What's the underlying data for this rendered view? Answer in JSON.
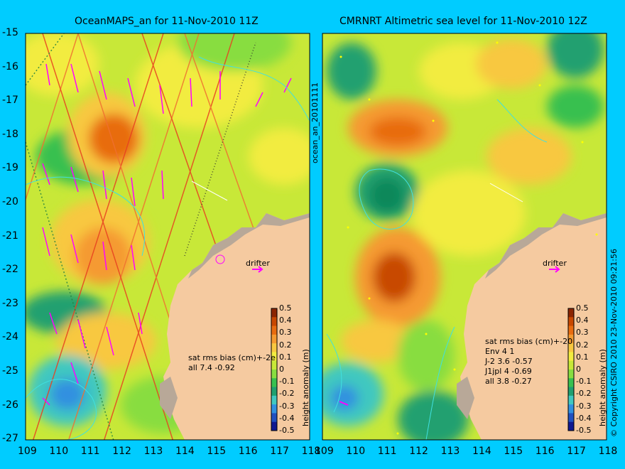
{
  "left_panel": {
    "title": "OceanMAPS_an for 11-Nov-2010 11Z",
    "stats_heading": "sat rms bias (cm)+-2e",
    "stats_lines": [
      "all 7.4 -0.92"
    ],
    "drifter_label": "drifter",
    "colorbar_title": "height anomaly (m)"
  },
  "right_panel": {
    "title": "CMRNRT Altimetric sea level  for 11-Nov-2010 12Z",
    "stats_heading": "sat rms bias (cm)+-20",
    "stats_lines": [
      "Env   4 1",
      "J-2   3.6 -0.57",
      "J1jpl 4 -0.69",
      "all 3.8 -0.27"
    ],
    "drifter_label": "drifter",
    "colorbar_title": "height anomaly (m)"
  },
  "side_label": "ocean_an_20101111",
  "copyright": "© Copyright CSIRO 2010  23-Nov-2010 09:21:56",
  "axes": {
    "y_ticks": [
      "-15",
      "-16",
      "-17",
      "-18",
      "-19",
      "-20",
      "-21",
      "-22",
      "-23",
      "-24",
      "-25",
      "-26",
      "-27"
    ],
    "x_ticks_left": [
      "109",
      "110",
      "111",
      "112",
      "113",
      "114",
      "115",
      "116",
      "117",
      "118"
    ],
    "x_ticks_right": [
      "109",
      "110",
      "111",
      "112",
      "113",
      "114",
      "115",
      "116",
      "117",
      "118"
    ]
  },
  "colorbar": {
    "ticks": [
      "0.5",
      "0.4",
      "0.3",
      "0.2",
      "0.1",
      "0",
      "-0.1",
      "-0.2",
      "-0.3",
      "-0.4",
      "-0.5"
    ],
    "colors": [
      "#8b2500",
      "#c84800",
      "#e86c10",
      "#f59a30",
      "#f8c840",
      "#f2ec40",
      "#c8e838",
      "#88dd40",
      "#38c050",
      "#20a070",
      "#40c8c0",
      "#3090e0",
      "#2050c0",
      "#101890"
    ]
  },
  "colors": {
    "background": "#00ccff",
    "land": "#f5caa0",
    "shelf": "#b8a898",
    "drift_arrow": "#ff00ff"
  }
}
